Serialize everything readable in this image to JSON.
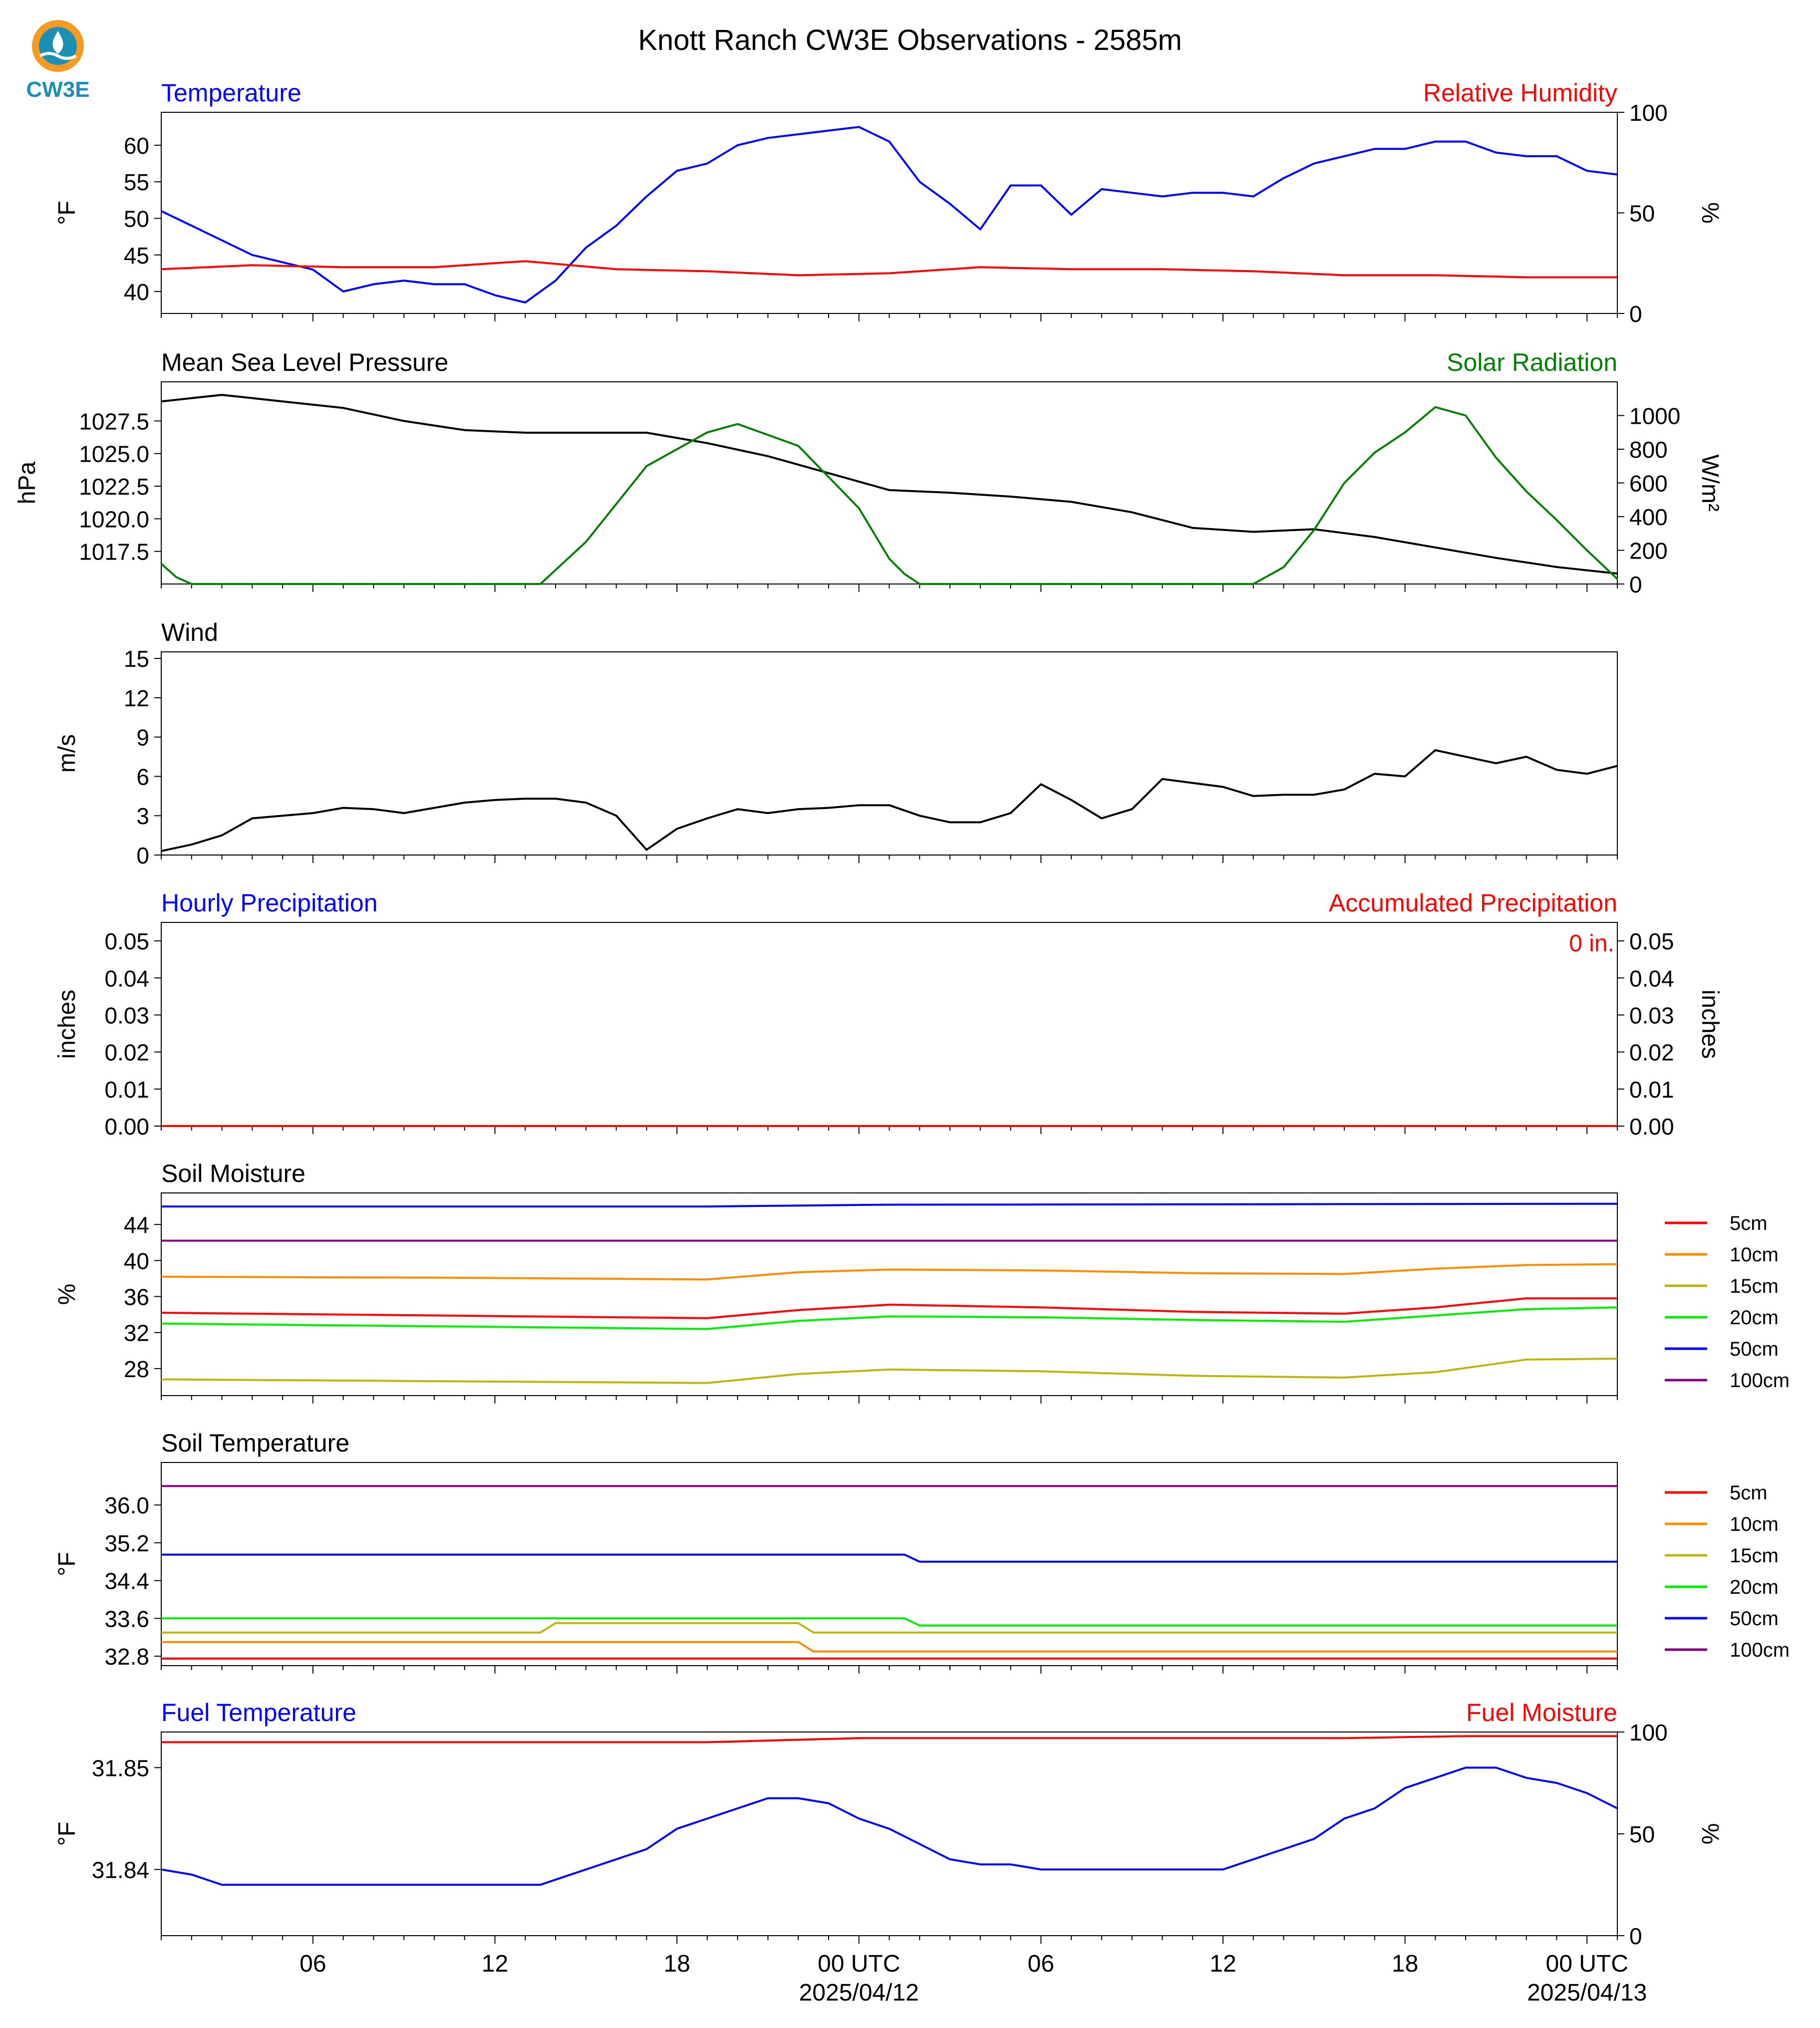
{
  "title": "Knott Ranch CW3E Observations - 2585m",
  "logo_text": "CW3E",
  "colors": {
    "blue": "#0000ff",
    "red": "#ff0000",
    "green": "#008000",
    "black": "#000000",
    "orange": "#ff8c00",
    "olive": "#bdb40f",
    "lime": "#00ee00",
    "purple": "#800080",
    "logo_orange": "#f59a23",
    "logo_blue": "#1b8fb4"
  },
  "x_axis": {
    "tick_labels": [
      "06",
      "12",
      "18",
      "00 UTC",
      "06",
      "12",
      "18",
      "00 UTC"
    ],
    "tick_hours": [
      6,
      12,
      18,
      24,
      30,
      36,
      42,
      48
    ],
    "date_labels": [
      "2025/04/12",
      "2025/04/13"
    ],
    "range_hours": [
      1,
      49
    ]
  },
  "legend_soil": [
    "5cm",
    "10cm",
    "15cm",
    "20cm",
    "50cm",
    "100cm"
  ],
  "chart_data": [
    {
      "type": "line",
      "title_left": "Temperature",
      "title_right": "Relative Humidity",
      "ylabel": "°F",
      "ylabel_right": "%",
      "ylim": [
        37,
        64.5
      ],
      "yticks": [
        "40",
        "45",
        "50",
        "55",
        "60"
      ],
      "ylim_right": [
        0,
        100
      ],
      "yticks_right": [
        "0",
        "50",
        "100"
      ],
      "series": [
        {
          "name": "Temperature",
          "axis": "left",
          "x": [
            1,
            2,
            3,
            4,
            5,
            6,
            7,
            8,
            9,
            10,
            11,
            12,
            13,
            14,
            15,
            16,
            17,
            18,
            19,
            20,
            21,
            22,
            23,
            24,
            25,
            26,
            27,
            28,
            29,
            30,
            31,
            32,
            33,
            34,
            35,
            36,
            37,
            38,
            39,
            40,
            41,
            42,
            43,
            44,
            45,
            46,
            47,
            48,
            49
          ],
          "y": [
            51,
            49,
            47,
            45,
            44,
            43,
            40,
            41,
            41.5,
            41,
            41,
            39.5,
            38.5,
            41.5,
            46,
            49,
            53,
            56.5,
            57.5,
            60,
            61,
            61.5,
            62,
            62.5,
            60.5,
            55,
            52,
            48.5,
            54.5,
            54.5,
            50.5,
            54,
            53.5,
            53,
            53.5,
            53.5,
            53,
            55.5,
            57.5,
            58.5,
            59.5,
            59.5,
            60.5,
            60.5,
            59,
            58.5,
            58.5,
            56.5,
            56
          ]
        },
        {
          "name": "Relative Humidity",
          "axis": "right",
          "x": [
            1,
            4,
            7,
            10,
            13,
            16,
            19,
            22,
            25,
            28,
            31,
            34,
            37,
            40,
            43,
            46,
            49
          ],
          "y": [
            22,
            24,
            23,
            23,
            26,
            22,
            21,
            19,
            20,
            23,
            22,
            22,
            21,
            19,
            19,
            18,
            18
          ]
        }
      ]
    },
    {
      "type": "line",
      "title_left": "Mean Sea Level Pressure",
      "title_right": "Solar Radiation",
      "ylabel": "hPa",
      "ylabel_right": "W/m²",
      "ylim": [
        1015,
        1030.5
      ],
      "yticks": [
        "1017.5",
        "1020.0",
        "1022.5",
        "1025.0",
        "1027.5"
      ],
      "ylim_right": [
        0,
        1200
      ],
      "yticks_right": [
        "0",
        "200",
        "400",
        "600",
        "800",
        "1000"
      ],
      "series": [
        {
          "name": "Mean Sea Level Pressure",
          "axis": "left",
          "x": [
            1,
            3,
            5,
            7,
            9,
            11,
            13,
            15,
            17,
            19,
            21,
            23,
            25,
            27,
            29,
            31,
            33,
            35,
            37,
            39,
            41,
            43,
            45,
            47,
            49
          ],
          "y": [
            1029.0,
            1029.5,
            1029,
            1028.5,
            1027.5,
            1026.8,
            1026.6,
            1026.6,
            1026.6,
            1025.8,
            1024.8,
            1023.5,
            1022.2,
            1022,
            1021.7,
            1021.3,
            1020.5,
            1019.3,
            1019,
            1019.2,
            1018.6,
            1017.8,
            1017,
            1016.3,
            1015.8
          ]
        },
        {
          "name": "Solar Radiation",
          "axis": "right",
          "x": [
            1,
            1.5,
            2,
            13.5,
            15,
            17,
            19,
            20,
            22,
            24,
            25,
            25.5,
            26,
            37,
            38,
            39,
            40,
            41,
            42,
            43,
            44,
            45,
            46,
            47,
            48,
            49
          ],
          "y": [
            120,
            40,
            0,
            0,
            250,
            700,
            900,
            950,
            820,
            450,
            150,
            60,
            0,
            0,
            100,
            320,
            600,
            780,
            900,
            1050,
            1000,
            750,
            550,
            380,
            200,
            30
          ]
        }
      ]
    },
    {
      "type": "line",
      "title_left": "Wind",
      "ylabel": "m/s",
      "ylim": [
        0,
        15.5
      ],
      "yticks": [
        "0",
        "3",
        "6",
        "9",
        "12",
        "15"
      ],
      "series": [
        {
          "name": "Wind",
          "axis": "left",
          "x": [
            1,
            2,
            3,
            4,
            5,
            6,
            7,
            8,
            9,
            10,
            11,
            12,
            13,
            14,
            15,
            16,
            17,
            18,
            19,
            20,
            21,
            22,
            23,
            24,
            25,
            26,
            27,
            28,
            29,
            30,
            31,
            32,
            33,
            34,
            35,
            36,
            37,
            38,
            39,
            40,
            41,
            42,
            43,
            44,
            45,
            46,
            47,
            48,
            49
          ],
          "y": [
            0.3,
            0.8,
            1.5,
            2.8,
            3,
            3.2,
            3.6,
            3.5,
            3.2,
            3.6,
            4,
            4.2,
            4.3,
            4.3,
            4,
            3,
            0.4,
            2,
            2.8,
            3.5,
            3.2,
            3.5,
            3.6,
            3.8,
            3.8,
            3,
            2.5,
            2.5,
            3.2,
            5.4,
            4.2,
            2.8,
            3.5,
            5.8,
            5.5,
            5.2,
            4.5,
            4.6,
            4.6,
            5,
            6.2,
            6,
            8,
            7.5,
            7,
            7.5,
            6.5,
            6.2,
            6.8
          ]
        }
      ]
    },
    {
      "type": "line",
      "title_left": "Hourly Precipitation",
      "title_right": "Accumulated Precipitation",
      "annotation": "0 in.",
      "ylabel": "inches",
      "ylabel_right": "inches",
      "ylim": [
        0,
        0.055
      ],
      "yticks": [
        "0.00",
        "0.01",
        "0.02",
        "0.03",
        "0.04",
        "0.05"
      ],
      "ylim_right": [
        0,
        0.055
      ],
      "yticks_right": [
        "0.00",
        "0.01",
        "0.02",
        "0.03",
        "0.04",
        "0.05"
      ],
      "series": [
        {
          "name": "Accumulated Precipitation",
          "axis": "left",
          "x": [
            1,
            49
          ],
          "y": [
            0,
            0
          ]
        }
      ]
    },
    {
      "type": "line",
      "title_left": "Soil Moisture",
      "ylabel": "%",
      "ylim": [
        25,
        47.5
      ],
      "yticks": [
        "28",
        "32",
        "36",
        "40",
        "44"
      ],
      "series": [
        {
          "name": "5cm",
          "axis": "left",
          "x": [
            1,
            10,
            19,
            22,
            25,
            30,
            35,
            40,
            43,
            46,
            49
          ],
          "y": [
            34.2,
            33.9,
            33.6,
            34.5,
            35.1,
            34.8,
            34.3,
            34.1,
            34.8,
            35.8,
            35.8
          ]
        },
        {
          "name": "10cm",
          "axis": "left",
          "x": [
            1,
            10,
            19,
            22,
            25,
            30,
            35,
            40,
            43,
            46,
            49
          ],
          "y": [
            38.2,
            38.1,
            37.9,
            38.7,
            39.0,
            38.9,
            38.6,
            38.5,
            39.1,
            39.5,
            39.6
          ]
        },
        {
          "name": "15cm",
          "axis": "left",
          "x": [
            1,
            10,
            19,
            22,
            25,
            30,
            35,
            40,
            43,
            46,
            49
          ],
          "y": [
            26.8,
            26.6,
            26.4,
            27.4,
            27.9,
            27.7,
            27.2,
            27.0,
            27.6,
            29.0,
            29.1
          ]
        },
        {
          "name": "20cm",
          "axis": "left",
          "x": [
            1,
            10,
            19,
            22,
            25,
            30,
            35,
            40,
            43,
            46,
            49
          ],
          "y": [
            33.0,
            32.7,
            32.4,
            33.3,
            33.8,
            33.7,
            33.4,
            33.2,
            33.9,
            34.6,
            34.8
          ]
        },
        {
          "name": "50cm",
          "axis": "left",
          "x": [
            1,
            19,
            25,
            49
          ],
          "y": [
            46.0,
            46.0,
            46.2,
            46.3
          ]
        },
        {
          "name": "100cm",
          "axis": "left",
          "x": [
            1,
            49
          ],
          "y": [
            42.2,
            42.2
          ]
        }
      ]
    },
    {
      "type": "line",
      "title_left": "Soil Temperature",
      "ylabel": "°F",
      "ylim": [
        32.6,
        36.9
      ],
      "yticks": [
        "32.8",
        "33.6",
        "34.4",
        "35.2",
        "36.0"
      ],
      "series": [
        {
          "name": "5cm",
          "axis": "left",
          "x": [
            1,
            49
          ],
          "y": [
            32.75,
            32.75
          ]
        },
        {
          "name": "10cm",
          "axis": "left",
          "x": [
            1,
            22,
            22.5,
            49
          ],
          "y": [
            33.1,
            33.1,
            32.9,
            32.9
          ]
        },
        {
          "name": "15cm",
          "axis": "left",
          "x": [
            1,
            13.5,
            14,
            22,
            22.5,
            49
          ],
          "y": [
            33.3,
            33.3,
            33.5,
            33.5,
            33.3,
            33.3
          ]
        },
        {
          "name": "20cm",
          "axis": "left",
          "x": [
            1,
            25.5,
            26,
            49
          ],
          "y": [
            33.6,
            33.6,
            33.45,
            33.45
          ]
        },
        {
          "name": "50cm",
          "axis": "left",
          "x": [
            1,
            25.5,
            26,
            49
          ],
          "y": [
            34.95,
            34.95,
            34.8,
            34.8
          ]
        },
        {
          "name": "100cm",
          "axis": "left",
          "x": [
            1,
            49
          ],
          "y": [
            36.4,
            36.4
          ]
        }
      ]
    },
    {
      "type": "line",
      "title_left": "Fuel Temperature",
      "title_right": "Fuel Moisture",
      "ylabel": "°F",
      "ylabel_right": "%",
      "ylim": [
        31.8335,
        31.8535
      ],
      "yticks": [
        "31.84",
        "31.85"
      ],
      "ylim_right": [
        0,
        100
      ],
      "yticks_right": [
        "0",
        "50",
        "100"
      ],
      "series": [
        {
          "name": "Fuel Temperature",
          "axis": "left",
          "x": [
            1,
            2,
            3,
            12.5,
            13.5,
            14,
            15,
            16,
            17,
            18,
            19,
            20,
            21,
            22,
            23,
            24,
            25,
            26,
            27,
            28,
            29,
            30,
            31,
            32,
            33,
            34,
            35,
            36,
            37,
            38,
            39,
            40,
            41,
            42,
            43,
            44,
            45,
            46,
            47,
            48,
            49
          ],
          "y": [
            31.84,
            31.8395,
            31.8385,
            31.8385,
            31.8385,
            31.839,
            31.84,
            31.841,
            31.842,
            31.844,
            31.845,
            31.846,
            31.847,
            31.847,
            31.8465,
            31.845,
            31.844,
            31.8425,
            31.841,
            31.8405,
            31.8405,
            31.84,
            31.84,
            31.84,
            31.84,
            31.84,
            31.84,
            31.84,
            31.841,
            31.842,
            31.843,
            31.845,
            31.846,
            31.848,
            31.849,
            31.85,
            31.85,
            31.849,
            31.8485,
            31.8475,
            31.846
          ]
        },
        {
          "name": "Fuel Moisture",
          "axis": "right",
          "x": [
            1,
            10,
            19,
            24,
            30,
            40,
            44,
            49
          ],
          "y": [
            95,
            95,
            95,
            97,
            97,
            97,
            98,
            98
          ]
        }
      ]
    }
  ]
}
